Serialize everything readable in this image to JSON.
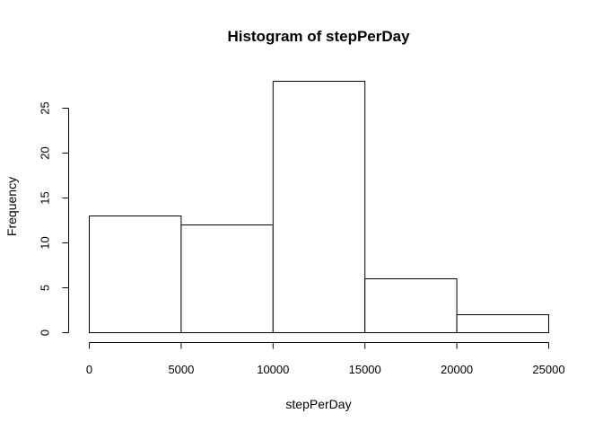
{
  "chart_data": {
    "type": "bar",
    "title": "Histogram of stepPerDay",
    "xlabel": "stepPerDay",
    "ylabel": "Frequency",
    "bins": [
      {
        "start": 0,
        "end": 5000,
        "count": 13
      },
      {
        "start": 5000,
        "end": 10000,
        "count": 12
      },
      {
        "start": 10000,
        "end": 15000,
        "count": 28
      },
      {
        "start": 15000,
        "end": 20000,
        "count": 6
      },
      {
        "start": 20000,
        "end": 25000,
        "count": 2
      }
    ],
    "xlim": [
      0,
      25000
    ],
    "ylim": [
      0,
      28
    ],
    "x_ticks": [
      0,
      5000,
      10000,
      15000,
      20000,
      25000
    ],
    "y_ticks": [
      0,
      5,
      10,
      15,
      20,
      25
    ],
    "grid": false,
    "legend": "none"
  }
}
